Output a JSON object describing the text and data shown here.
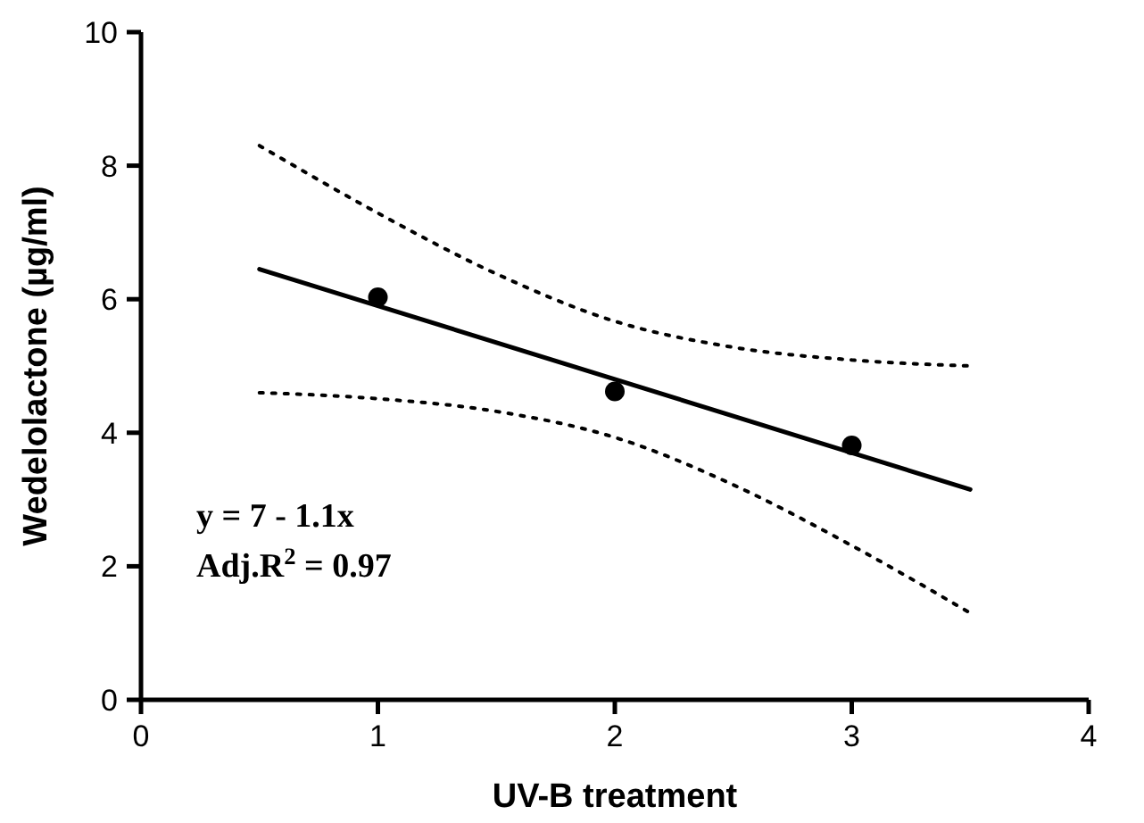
{
  "chart_data": {
    "type": "scatter",
    "xlabel": "UV-B treatment",
    "ylabel": "Wedelolactone (µg/ml)",
    "xlim": [
      0,
      4
    ],
    "xticks": [
      0,
      1,
      2,
      3,
      4
    ],
    "ylim": [
      0,
      10
    ],
    "yticks": [
      0,
      2,
      4,
      6,
      8,
      10
    ],
    "grid": false,
    "annotations": [
      "y = 7 - 1.1x",
      "Adj.R$^{2}$ = 0.97"
    ],
    "series": [
      {
        "type": "line",
        "color": "#000000",
        "marker": "none",
        "line_style": "dotted",
        "x": [
          0.5,
          1,
          1.5,
          2,
          2.5,
          3,
          3.5
        ],
        "values": [
          8.3,
          7.29,
          6.38,
          5.67,
          5.28,
          5.09,
          5.0
        ]
      },
      {
        "type": "line",
        "color": "#000000",
        "marker": "none",
        "line_style": "dotted",
        "x": [
          0.5,
          1,
          1.5,
          2,
          2.5,
          3,
          3.5
        ],
        "values": [
          4.6,
          4.51,
          4.32,
          3.93,
          3.22,
          2.31,
          1.3
        ]
      },
      {
        "type": "line",
        "color": "#000000",
        "marker": "none",
        "line_style": "solid",
        "x": [
          0.5,
          3.5
        ],
        "values": [
          6.45,
          3.15
        ]
      },
      {
        "color": "#000000",
        "marker": "circle",
        "x": [
          1,
          2,
          3
        ],
        "values": [
          6.03,
          4.62,
          3.81
        ]
      }
    ]
  }
}
